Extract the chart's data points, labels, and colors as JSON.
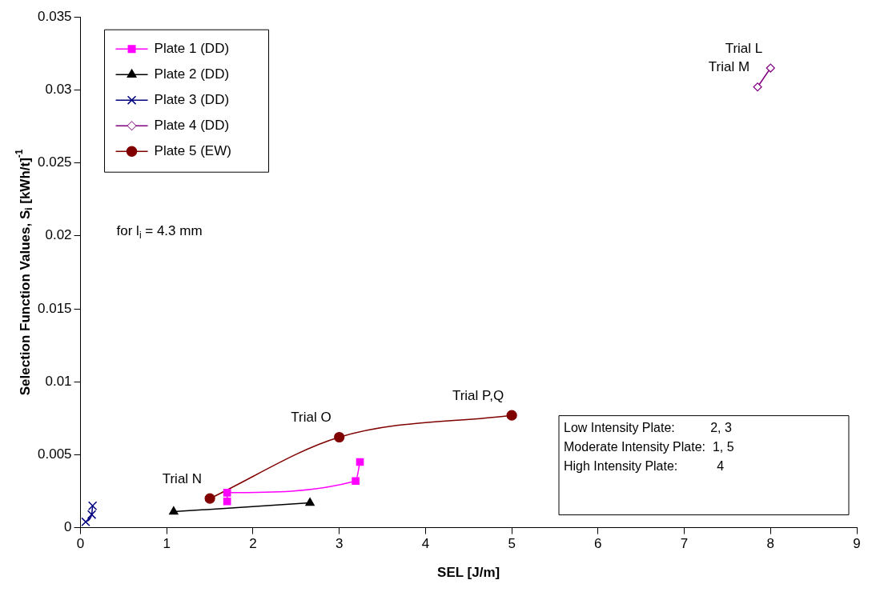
{
  "chart_data": {
    "type": "line",
    "xlabel": "SEL [J/m]",
    "ylabel": "Selection Function Values, S$_{i}$ [kWh/t]$^{-1}$",
    "xlim": [
      0,
      9
    ],
    "xticks": [
      0,
      1,
      2,
      3,
      4,
      5,
      6,
      7,
      8,
      9
    ],
    "ylim": [
      0,
      0.035
    ],
    "yticks": [
      0,
      0.005,
      0.01,
      0.015,
      0.02,
      0.025,
      0.03,
      0.035
    ],
    "grid": false,
    "legend": "top left",
    "series": [
      {
        "name": "Plate 1 (DD)",
        "color": "#ff00ff",
        "marker": "square",
        "x": [
          1.7,
          1.7,
          3.19,
          3.24
        ],
        "values": [
          0.0018,
          0.0024,
          0.0032,
          0.0045
        ]
      },
      {
        "name": "Plate 2 (DD)",
        "color": "#000000",
        "marker": "triangle",
        "x": [
          1.08,
          2.66
        ],
        "values": [
          0.0011,
          0.0017
        ]
      },
      {
        "name": "Plate 3 (DD)",
        "color": "#000080",
        "marker": "cross",
        "x": [
          0.06,
          0.13,
          0.14
        ],
        "values": [
          0.0004,
          0.0009,
          0.0015
        ]
      },
      {
        "name": "Plate 4 (DD)",
        "color": "#800080",
        "marker": "diamond",
        "x": [
          7.85,
          8.0
        ],
        "values": [
          0.0302,
          0.0315
        ]
      },
      {
        "name": "Plate 5 (EW)",
        "color": "#800000",
        "marker": "circle",
        "x": [
          1.5,
          3,
          5
        ],
        "values": [
          0.002,
          0.0062,
          0.0077
        ]
      }
    ],
    "annotations": [
      {
        "text": "Trial L",
        "x": 8.0,
        "y": 0.0315
      },
      {
        "text": "Trial M",
        "x": 7.85,
        "y": 0.0302
      },
      {
        "text": "Trial N",
        "x": 1.5,
        "y": 0.002
      },
      {
        "text": "Trial O",
        "x": 3,
        "y": 0.0062
      },
      {
        "text": "Trial P,Q",
        "x": 5,
        "y": 0.0077
      },
      "for l$_{i}$ = 4.3 mm",
      "Low Intensity Plate:          2, 3",
      "Moderate Intensity Plate:  1, 5",
      "High Intensity Plate:           4"
    ]
  }
}
